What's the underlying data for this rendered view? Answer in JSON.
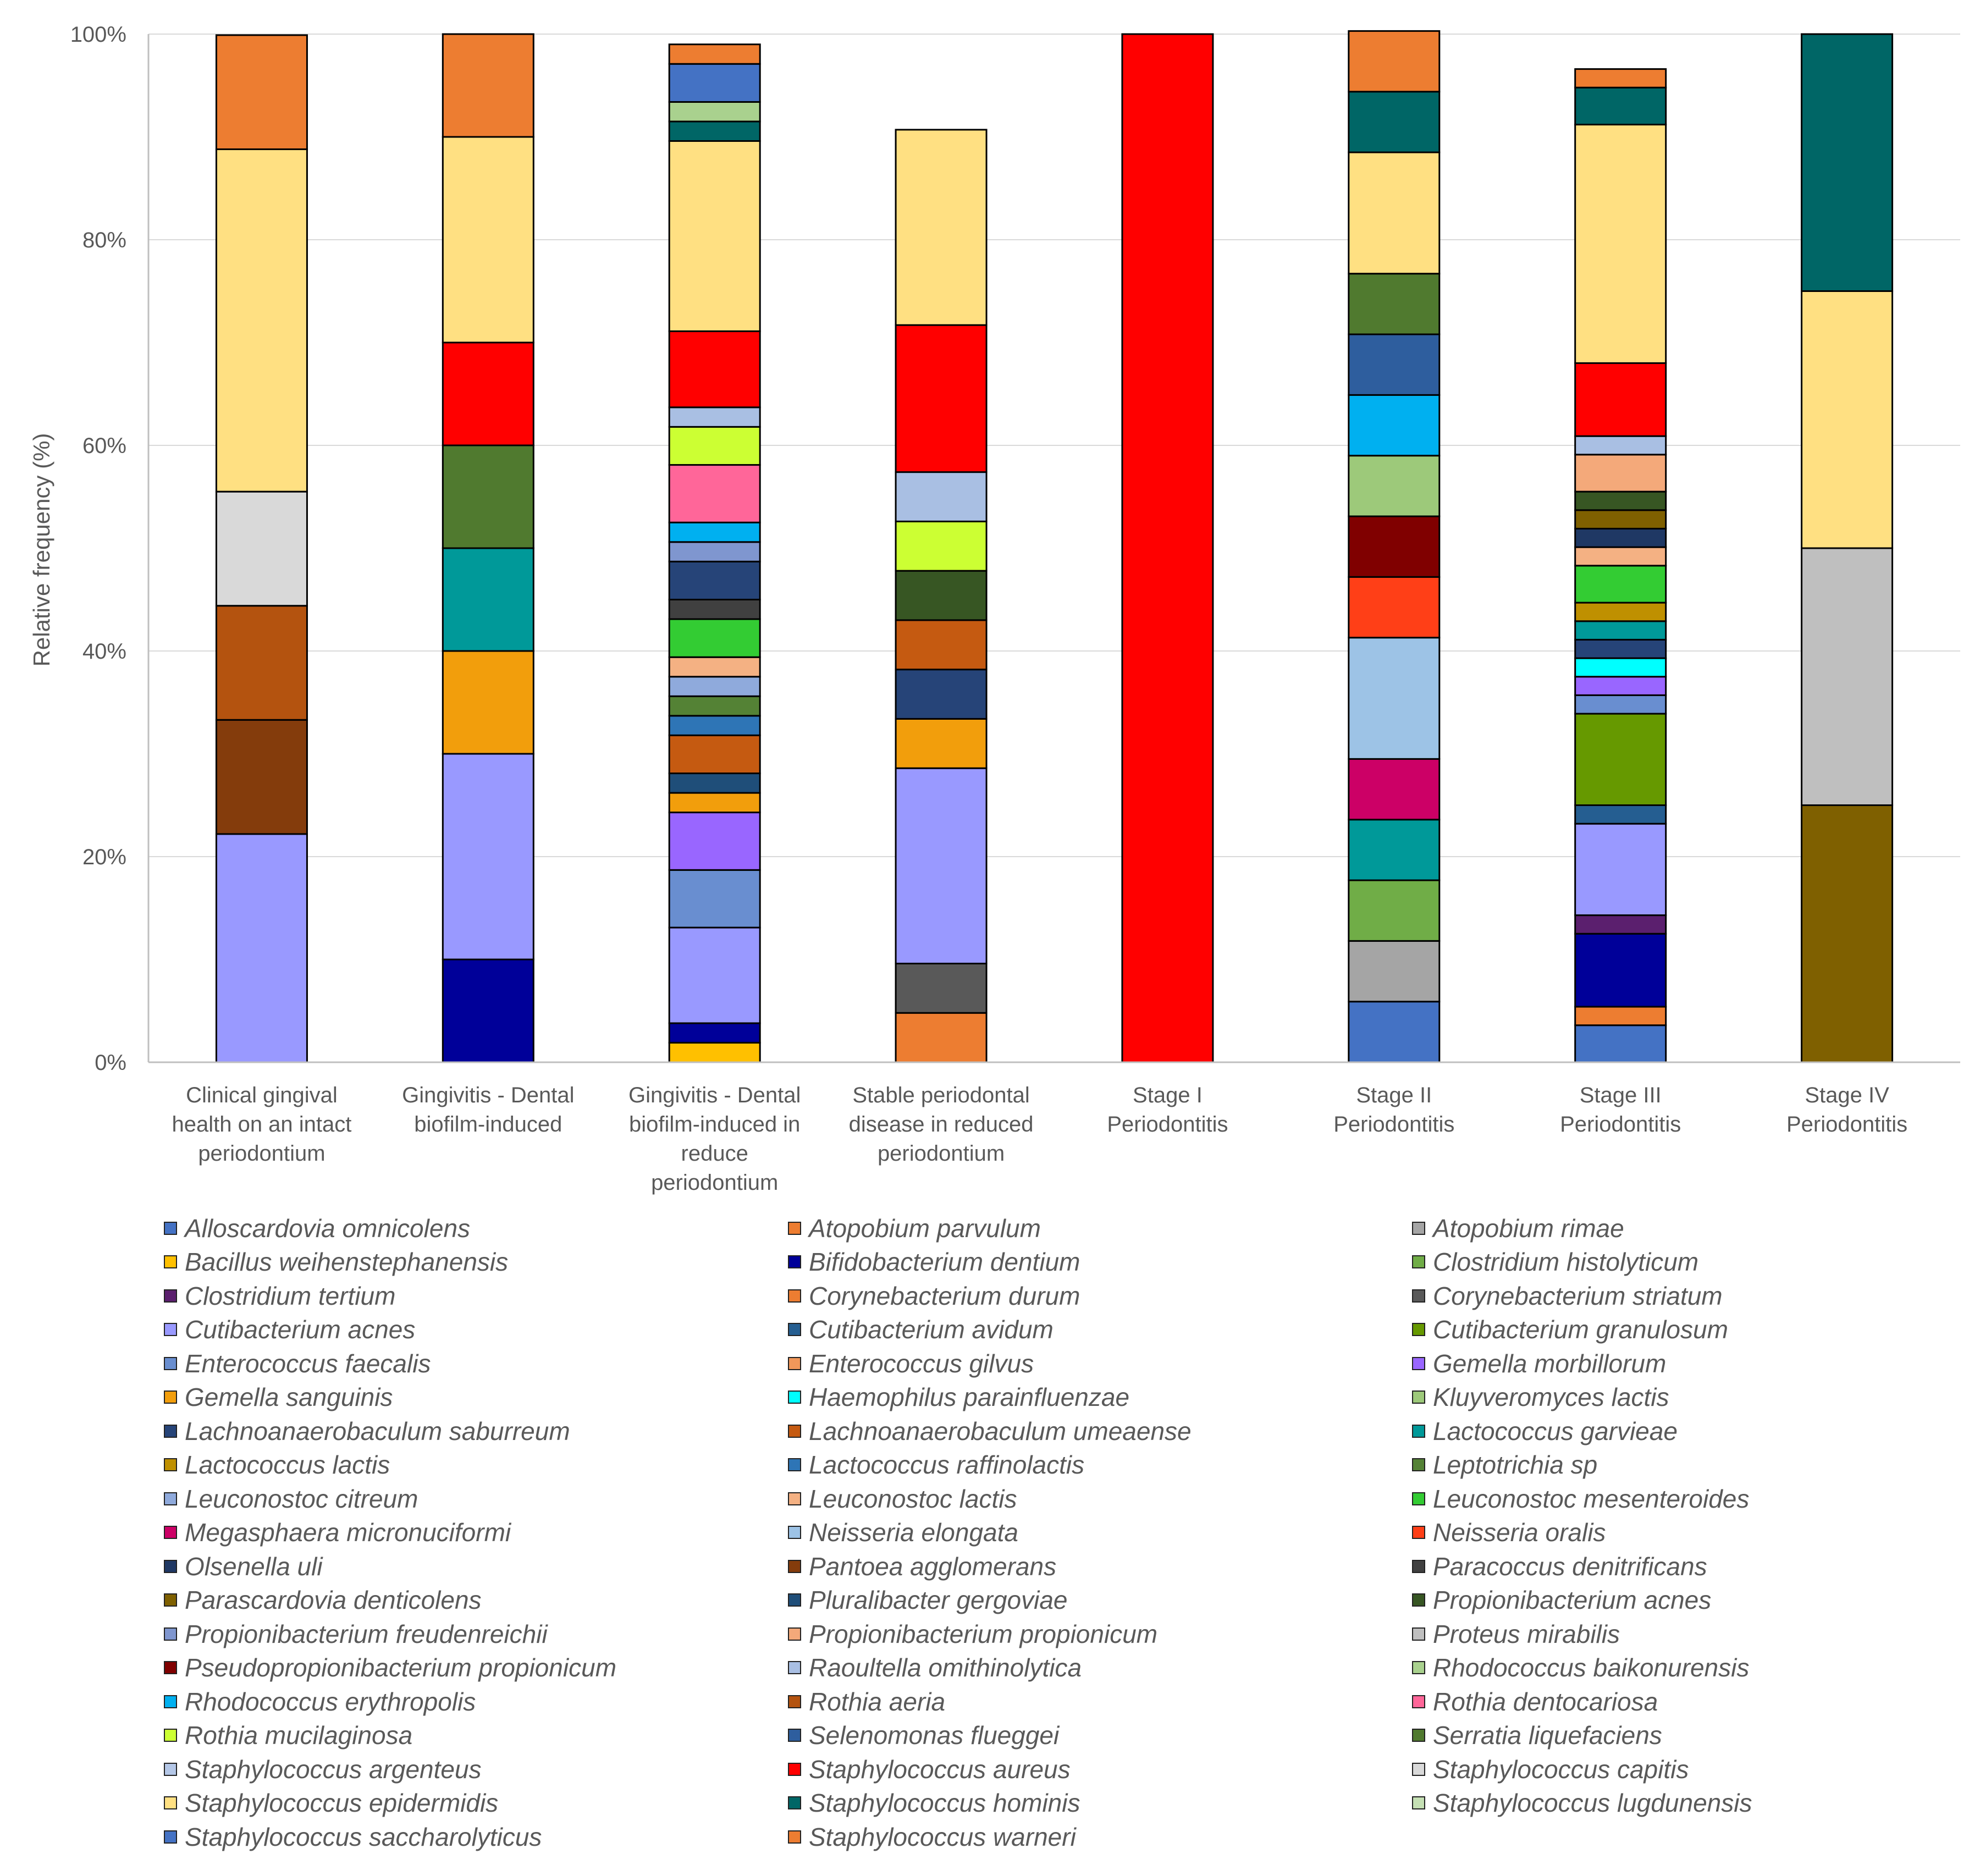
{
  "chart_data": {
    "type": "bar",
    "stacked": true,
    "ylabel": "Relative frequency (%)",
    "ylim": [
      0,
      100
    ],
    "yticks": [
      "0%",
      "20%",
      "40%",
      "60%",
      "80%",
      "100%"
    ],
    "grid": true,
    "legend_position": "bottom",
    "categories": [
      {
        "lines": [
          "Clinical gingival",
          "health on an intact",
          "periodontium"
        ]
      },
      {
        "lines": [
          "Gingivitis - Dental",
          "biofilm-induced"
        ]
      },
      {
        "lines": [
          "Gingivitis - Dental",
          "biofilm-induced in",
          "reduce",
          "periodontium"
        ]
      },
      {
        "lines": [
          "Stable periodontal",
          "disease in reduced",
          "periodontium"
        ]
      },
      {
        "lines": [
          "Stage I",
          "Periodontitis"
        ]
      },
      {
        "lines": [
          "Stage II",
          "Periodontitis"
        ]
      },
      {
        "lines": [
          "Stage III",
          "Periodontitis"
        ]
      },
      {
        "lines": [
          "Stage IV",
          "Periodontitis"
        ]
      }
    ],
    "series": [
      {
        "name": "Alloscardovia omnicolens",
        "color": "#4472C4",
        "values": [
          0,
          0,
          3.7,
          0,
          0,
          5.9,
          3.6,
          0
        ]
      },
      {
        "name": "Atopobium parvulum",
        "color": "#ED7D31",
        "values": [
          11.1,
          10,
          1.9,
          4.8,
          0,
          5.9,
          1.8,
          0
        ]
      },
      {
        "name": "Atopobium rimae",
        "color": "#A5A5A5",
        "values": [
          0,
          0,
          0,
          0,
          0,
          5.9,
          0,
          0
        ]
      },
      {
        "name": "Bacillus weihenstephanensis",
        "color": "#FFC000",
        "values": [
          0,
          0,
          1.9,
          0,
          0,
          0,
          0,
          0
        ]
      },
      {
        "name": "Bifidobacterium dentium",
        "color": "#000099",
        "values": [
          0,
          10,
          1.9,
          0,
          0,
          0,
          7.1,
          0
        ]
      },
      {
        "name": "Clostridium histolyticum",
        "color": "#70AD47",
        "values": [
          0,
          0,
          0,
          0,
          0,
          5.9,
          0,
          0
        ]
      },
      {
        "name": "Clostridium tertium",
        "color": "#5B1F6E",
        "values": [
          0,
          0,
          0,
          0,
          0,
          0,
          1.8,
          0
        ]
      },
      {
        "name": "Corynebacterium durum",
        "color": "#ED7D31",
        "values": [
          0,
          0,
          0,
          0,
          0,
          0,
          0,
          0
        ]
      },
      {
        "name": "Corynebacterium striatum",
        "color": "#595959",
        "values": [
          0,
          0,
          0,
          4.8,
          0,
          0,
          0,
          0
        ]
      },
      {
        "name": "Cutibacterium acnes",
        "color": "#9999FF",
        "values": [
          22.2,
          20,
          9.3,
          19.0,
          0,
          0,
          8.9,
          0
        ]
      },
      {
        "name": "Cutibacterium avidum",
        "color": "#255E91",
        "values": [
          0,
          0,
          0,
          0,
          0,
          0,
          1.8,
          0
        ]
      },
      {
        "name": "Cutibacterium granulosum",
        "color": "#669900",
        "values": [
          0,
          0,
          0,
          0,
          0,
          0,
          8.9,
          0
        ]
      },
      {
        "name": "Enterococcus faecalis",
        "color": "#698ED0",
        "values": [
          0,
          0,
          5.6,
          0,
          0,
          0,
          1.8,
          0
        ]
      },
      {
        "name": "Enterococcus gilvus",
        "color": "#F1975A",
        "values": [
          0,
          0,
          0,
          0,
          0,
          0,
          0,
          0
        ]
      },
      {
        "name": "Gemella morbillorum",
        "color": "#9966FF",
        "values": [
          0,
          0,
          5.6,
          0,
          0,
          0,
          1.8,
          0
        ]
      },
      {
        "name": "Gemella sanguinis",
        "color": "#F29E0C",
        "values": [
          0,
          10,
          1.9,
          4.8,
          0,
          0,
          0,
          0
        ]
      },
      {
        "name": "Haemophilus parainfluenzae",
        "color": "#00FFFF",
        "values": [
          0,
          0,
          0,
          0,
          0,
          0,
          1.8,
          0
        ]
      },
      {
        "name": "Kluyveromyces lactis",
        "color": "#9DC97A",
        "values": [
          0,
          0,
          0,
          0,
          0,
          5.9,
          0,
          0
        ]
      },
      {
        "name": "Lachnoanaerobaculum saburreum",
        "color": "#264478",
        "values": [
          0,
          0,
          3.7,
          4.8,
          0,
          0,
          1.8,
          0
        ]
      },
      {
        "name": "Lachnoanaerobaculum umeaense",
        "color": "#C55A11",
        "values": [
          0,
          0,
          3.7,
          4.8,
          0,
          0,
          0,
          0
        ]
      },
      {
        "name": "Lactococcus garvieae",
        "color": "#009999",
        "values": [
          0,
          10,
          0,
          0,
          0,
          5.9,
          1.8,
          0
        ]
      },
      {
        "name": "Lactococcus lactis",
        "color": "#BF9000",
        "values": [
          0,
          0,
          0,
          0,
          0,
          0,
          1.8,
          0
        ]
      },
      {
        "name": "Lactococcus raffinolactis",
        "color": "#2E75B6",
        "values": [
          0,
          0,
          1.9,
          0,
          0,
          0,
          0,
          0
        ]
      },
      {
        "name": "Leptotrichia sp",
        "color": "#548235",
        "values": [
          0,
          0,
          1.9,
          0,
          0,
          0,
          0,
          0
        ]
      },
      {
        "name": "Leuconostoc citreum",
        "color": "#8FAADC",
        "values": [
          0,
          0,
          1.9,
          0,
          0,
          0,
          0,
          0
        ]
      },
      {
        "name": "Leuconostoc lactis",
        "color": "#F4B183",
        "values": [
          0,
          0,
          1.9,
          0,
          0,
          0,
          1.8,
          0
        ]
      },
      {
        "name": "Leuconostoc mesenteroides",
        "color": "#33CC33",
        "values": [
          0,
          0,
          3.7,
          0,
          0,
          0,
          3.6,
          0
        ]
      },
      {
        "name": "Megasphaera micronuciformi",
        "color": "#CC0066",
        "values": [
          0,
          0,
          0,
          0,
          0,
          5.9,
          0,
          0
        ]
      },
      {
        "name": "Neisseria elongata",
        "color": "#9DC3E6",
        "values": [
          0,
          0,
          0,
          0,
          0,
          11.8,
          0,
          0
        ]
      },
      {
        "name": "Neisseria oralis",
        "color": "#FF3F17",
        "values": [
          0,
          0,
          0,
          0,
          0,
          5.9,
          0,
          0
        ]
      },
      {
        "name": "Olsenella uli",
        "color": "#1F3864",
        "values": [
          0,
          0,
          0,
          0,
          0,
          0,
          1.8,
          0
        ]
      },
      {
        "name": "Pantoea agglomerans",
        "color": "#843C0C",
        "values": [
          11.1,
          0,
          0,
          0,
          0,
          0,
          0,
          0
        ]
      },
      {
        "name": "Paracoccus denitrificans",
        "color": "#404040",
        "values": [
          0,
          0,
          1.9,
          0,
          0,
          0,
          0,
          0
        ]
      },
      {
        "name": "Parascardovia denticolens",
        "color": "#7F6000",
        "values": [
          0,
          0,
          0,
          0,
          0,
          0,
          1.8,
          25
        ]
      },
      {
        "name": "Pluralibacter gergoviae",
        "color": "#1F4E79",
        "values": [
          0,
          0,
          1.9,
          0,
          0,
          0,
          0,
          0
        ]
      },
      {
        "name": "Propionibacterium acnes",
        "color": "#375623",
        "values": [
          0,
          0,
          0,
          4.8,
          0,
          0,
          1.8,
          0
        ]
      },
      {
        "name": "Propionibacterium freudenreichii",
        "color": "#7F96CF",
        "values": [
          0,
          0,
          1.9,
          0,
          0,
          0,
          0,
          0
        ]
      },
      {
        "name": "Propionibacterium propionicum",
        "color": "#F4A97A",
        "values": [
          0,
          0,
          0,
          0,
          0,
          0,
          3.6,
          0
        ]
      },
      {
        "name": "Proteus mirabilis",
        "color": "#BFBFBF",
        "values": [
          0,
          0,
          0,
          0,
          0,
          0,
          0,
          25
        ]
      },
      {
        "name": "Pseudopropionibacterium propionicum",
        "color": "#800000",
        "values": [
          0,
          0,
          0,
          0,
          0,
          5.9,
          0,
          0
        ]
      },
      {
        "name": "Raoultella omithinolytica",
        "color": "#A9BFE3",
        "values": [
          0,
          0,
          1.9,
          4.8,
          0,
          0,
          1.8,
          0
        ]
      },
      {
        "name": "Rhodococcus baikonurensis",
        "color": "#A9D18E",
        "values": [
          0,
          0,
          1.9,
          0,
          0,
          0,
          0,
          0
        ]
      },
      {
        "name": "Rhodococcus erythropolis",
        "color": "#00B0F0",
        "values": [
          0,
          0,
          1.9,
          0,
          0,
          5.9,
          0,
          0
        ]
      },
      {
        "name": "Rothia aeria",
        "color": "#B4530F",
        "values": [
          11.1,
          0,
          0,
          0,
          0,
          0,
          0,
          0
        ]
      },
      {
        "name": "Rothia dentocariosa",
        "color": "#FF6699",
        "values": [
          0,
          0,
          5.6,
          0,
          0,
          0,
          0,
          0
        ]
      },
      {
        "name": "Rothia mucilaginosa",
        "color": "#CCFF33",
        "values": [
          0,
          0,
          3.7,
          4.8,
          0,
          0,
          0,
          0
        ]
      },
      {
        "name": "Selenomonas flueggei",
        "color": "#2E5E9E",
        "values": [
          0,
          0,
          0,
          0,
          0,
          5.9,
          0,
          0
        ]
      },
      {
        "name": "Serratia liquefaciens",
        "color": "#507A2F",
        "values": [
          0,
          10,
          0,
          0,
          0,
          5.9,
          0,
          0
        ]
      },
      {
        "name": "Staphylococcus argenteus",
        "color": "#B4C7E7",
        "values": [
          0,
          0,
          0,
          0,
          0,
          0,
          0,
          0
        ]
      },
      {
        "name": "Staphylococcus aureus",
        "color": "#FF0000",
        "values": [
          0,
          10,
          7.4,
          14.3,
          100,
          0,
          7.1,
          0
        ]
      },
      {
        "name": "Staphylococcus capitis",
        "color": "#D9D9D9",
        "values": [
          11.1,
          0,
          0,
          0,
          0,
          0,
          0,
          0
        ]
      },
      {
        "name": "Staphylococcus epidermidis",
        "color": "#FFE082",
        "values": [
          33.3,
          20,
          18.5,
          19.0,
          0,
          11.8,
          23.2,
          25
        ]
      },
      {
        "name": "Staphylococcus hominis",
        "color": "#006666",
        "values": [
          0,
          0,
          1.9,
          0,
          0,
          5.9,
          3.6,
          25
        ]
      },
      {
        "name": "Staphylococcus lugdunensis",
        "color": "#C5E0B4",
        "values": [
          0,
          0,
          1.9,
          0,
          0,
          0,
          0,
          0
        ]
      },
      {
        "name": "Staphylococcus saccharolyticus",
        "color": "#4472C4",
        "values": [
          0,
          0,
          3.7,
          0,
          0,
          0,
          0,
          0
        ]
      },
      {
        "name": "Staphylococcus warneri",
        "color": "#ED7D31",
        "values": [
          0,
          0,
          1.9,
          0,
          0,
          0,
          1.8,
          0
        ]
      }
    ],
    "stacks": [
      [
        "Cutibacterium acnes",
        "Pantoea agglomerans",
        "Rothia aeria",
        "Staphylococcus capitis",
        "Staphylococcus epidermidis",
        "Atopobium parvulum"
      ],
      [
        "Bifidobacterium dentium",
        "Cutibacterium acnes",
        "Gemella sanguinis",
        "Lactococcus garvieae",
        "Serratia liquefaciens",
        "Staphylococcus aureus",
        "Staphylococcus epidermidis",
        "Atopobium parvulum"
      ],
      [
        "Bacillus weihenstephanensis",
        "Bifidobacterium dentium",
        "Cutibacterium acnes",
        "Enterococcus faecalis",
        "Gemella morbillorum",
        "Gemella sanguinis",
        "Pluralibacter gergoviae",
        "Lachnoanaerobaculum umeaense",
        "Lactococcus raffinolactis",
        "Leptotrichia sp",
        "Leuconostoc citreum",
        "Leuconostoc lactis",
        "Leuconostoc mesenteroides",
        "Paracoccus denitrificans",
        "Lachnoanaerobaculum saburreum",
        "Propionibacterium freudenreichii",
        "Rhodococcus erythropolis",
        "Rothia dentocariosa",
        "Rothia mucilaginosa",
        "Raoultella omithinolytica",
        "Staphylococcus aureus",
        "Staphylococcus epidermidis",
        "Staphylococcus hominis",
        "Rhodococcus baikonurensis",
        "Alloscardovia omnicolens",
        "Staphylococcus warneri"
      ],
      [
        "Atopobium parvulum",
        "Corynebacterium striatum",
        "Cutibacterium acnes",
        "Staphylococcus argenteus",
        "Gemella sanguinis",
        "Lachnoanaerobaculum saburreum",
        "Lachnoanaerobaculum umeaense",
        "Propionibacterium acnes",
        "Rothia mucilaginosa",
        "Raoultella omithinolytica",
        "Staphylococcus aureus",
        "Staphylococcus epidermidis"
      ],
      [
        "Staphylococcus aureus"
      ],
      [
        "Alloscardovia omnicolens",
        "Atopobium rimae",
        "Clostridium histolyticum",
        "Lactococcus garvieae",
        "Megasphaera micronuciformi",
        "Neisseria elongata",
        "Neisseria oralis",
        "Pseudopropionibacterium propionicum",
        "Kluyveromyces lactis",
        "Rhodococcus erythropolis",
        "Selenomonas flueggei",
        "Serratia liquefaciens",
        "Staphylococcus epidermidis",
        "Staphylococcus hominis",
        "Atopobium parvulum"
      ],
      [
        "Alloscardovia omnicolens",
        "Staphylococcus warneri",
        "Bifidobacterium dentium",
        "Clostridium tertium",
        "Cutibacterium acnes",
        "Cutibacterium avidum",
        "Cutibacterium granulosum",
        "Enterococcus faecalis",
        "Gemella morbillorum",
        "Haemophilus parainfluenzae",
        "Lachnoanaerobaculum saburreum",
        "Lactococcus garvieae",
        "Lactococcus lactis",
        "Leuconostoc mesenteroides",
        "Leuconostoc lactis",
        "Leuconostoc mesenteroides",
        "Olsenella uli",
        "Parascardovia denticolens",
        "Propionibacterium acnes",
        "Propionibacterium propionicum",
        "Raoultella omithinolytica",
        "Staphylococcus aureus",
        "Staphylococcus epidermidis",
        "Staphylococcus hominis",
        "Atopobium parvulum"
      ],
      [
        "Parascardovia denticolens",
        "Proteus mirabilis",
        "Staphylococcus epidermidis",
        "Staphylococcus hominis"
      ]
    ]
  }
}
